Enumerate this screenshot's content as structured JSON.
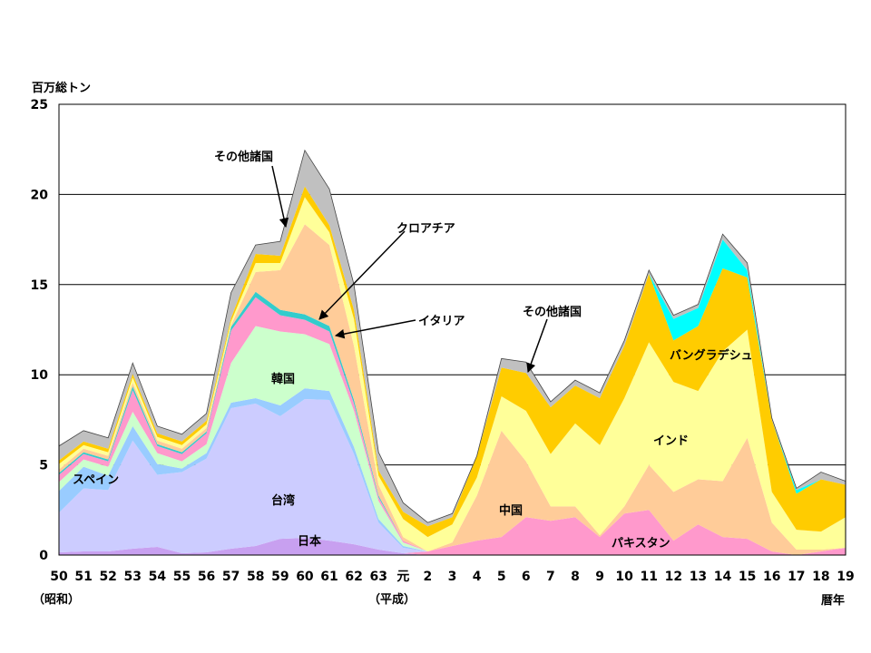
{
  "chart_data": {
    "type": "area",
    "stacked": true,
    "ylabel": "百万総トン",
    "xlabel": "暦年",
    "era_labels": {
      "showa": "（昭和）",
      "heisei": "（平成）"
    },
    "ylim": [
      0,
      25
    ],
    "yticks": [
      0,
      5,
      10,
      15,
      20,
      25
    ],
    "grid": true,
    "categories": [
      "50",
      "51",
      "52",
      "53",
      "54",
      "55",
      "56",
      "57",
      "58",
      "59",
      "60",
      "61",
      "62",
      "63",
      "元",
      "2",
      "3",
      "4",
      "5",
      "6",
      "7",
      "8",
      "9",
      "10",
      "11",
      "12",
      "13",
      "14",
      "15",
      "16",
      "17",
      "18",
      "19"
    ],
    "series": [
      {
        "name": "日本",
        "color": "#c8a0f0",
        "values": [
          0.15,
          0.2,
          0.2,
          0.35,
          0.45,
          0.1,
          0.15,
          0.35,
          0.5,
          0.9,
          0.95,
          0.8,
          0.6,
          0.3,
          0.1,
          0.0,
          0.0,
          0.0,
          0.0,
          0.0,
          0.0,
          0.0,
          0.0,
          0.0,
          0.0,
          0.0,
          0.0,
          0.0,
          0.0,
          0.0,
          0.0,
          0.0,
          0.0
        ]
      },
      {
        "name": "パキスタン",
        "color": "#ff99cc",
        "values": [
          0,
          0,
          0,
          0,
          0,
          0,
          0,
          0,
          0,
          0,
          0,
          0,
          0,
          0,
          0,
          0.2,
          0.5,
          0.8,
          1.0,
          2.1,
          1.9,
          2.1,
          1.0,
          2.3,
          2.5,
          0.8,
          1.7,
          1.0,
          0.9,
          0.2,
          0,
          0.2,
          0.4
        ]
      },
      {
        "name": "台湾",
        "color": "#ccccff",
        "values": [
          2.2,
          3.5,
          3.4,
          6.0,
          4.0,
          4.5,
          5.2,
          7.8,
          7.9,
          6.8,
          7.7,
          7.8,
          5.0,
          1.5,
          0.3,
          0,
          0,
          0,
          0,
          0,
          0,
          0,
          0,
          0,
          0,
          0,
          0,
          0,
          0,
          0,
          0,
          0,
          0
        ]
      },
      {
        "name": "スペイン",
        "color": "#99ccff",
        "values": [
          1.2,
          1.2,
          0.8,
          0.8,
          0.6,
          0.2,
          0.3,
          0.3,
          0.3,
          0.6,
          0.6,
          0.5,
          0.4,
          0.2,
          0.1,
          0,
          0,
          0,
          0,
          0,
          0,
          0,
          0,
          0,
          0,
          0,
          0,
          0,
          0,
          0,
          0,
          0,
          0
        ]
      },
      {
        "name": "韓国",
        "color": "#ccffcc",
        "values": [
          0.5,
          0.4,
          0.5,
          0.8,
          0.6,
          0.4,
          0.5,
          2.2,
          4.0,
          4.1,
          3.0,
          2.6,
          2.0,
          1.0,
          0.2,
          0,
          0,
          0,
          0,
          0,
          0,
          0,
          0,
          0,
          0,
          0,
          0,
          0,
          0,
          0,
          0,
          0,
          0
        ]
      },
      {
        "name": "中国",
        "color": "#ffcc99",
        "values": [
          0,
          0,
          0,
          0,
          0,
          0,
          0,
          0,
          0,
          0,
          0,
          0,
          0,
          0,
          0,
          0,
          0.2,
          2.5,
          5.9,
          3.1,
          0.8,
          0.6,
          0.1,
          0.4,
          2.5,
          2.7,
          2.5,
          3.1,
          5.6,
          1.6,
          0.3,
          0.1,
          0
        ]
      },
      {
        "name": "イタリア",
        "color": "#ff99cc",
        "values": [
          0.4,
          0.3,
          0.3,
          1.2,
          0.4,
          0.4,
          0.6,
          1.8,
          1.6,
          0.9,
          0.8,
          0.7,
          0.4,
          0.2,
          0.1,
          0,
          0,
          0,
          0,
          0,
          0,
          0,
          0,
          0,
          0,
          0,
          0,
          0,
          0,
          0,
          0,
          0,
          0
        ]
      },
      {
        "name": "クロアチア",
        "color": "#33cccc",
        "values": [
          0.1,
          0.1,
          0.1,
          0.2,
          0.1,
          0.1,
          0.1,
          0.2,
          0.3,
          0.3,
          0.3,
          0.3,
          0.2,
          0.1,
          0,
          0,
          0,
          0,
          0,
          0,
          0,
          0,
          0,
          0,
          0,
          0,
          0,
          0,
          0,
          0,
          0,
          0,
          0
        ]
      },
      {
        "name": "",
        "color": "#ffcc99",
        "values": [
          0.2,
          0.2,
          0.2,
          0.2,
          0.2,
          0.2,
          0.2,
          0.1,
          1.1,
          2.2,
          5.0,
          4.5,
          3.0,
          0.6,
          0.2,
          0,
          0,
          0,
          0,
          0,
          0,
          0,
          0,
          0,
          0,
          0,
          0,
          0,
          0,
          0,
          0,
          0,
          0
        ]
      },
      {
        "name": "インド",
        "color": "#ffff99",
        "values": [
          0.3,
          0.2,
          0.2,
          0.3,
          0.2,
          0.2,
          0.2,
          0.2,
          0.5,
          0.4,
          1.5,
          0.7,
          1.5,
          0.5,
          1.0,
          0.8,
          1.0,
          1.0,
          1.9,
          2.8,
          2.9,
          4.6,
          5.0,
          6.0,
          6.8,
          6.1,
          4.9,
          7.2,
          6.0,
          1.7,
          1.1,
          1.0,
          1.7
        ]
      },
      {
        "name": "バングラデシュ",
        "color": "#ffcc00",
        "values": [
          0.2,
          0.2,
          0.2,
          0.2,
          0.2,
          0.2,
          0.2,
          0.2,
          0.5,
          0.4,
          0.6,
          0.4,
          0.5,
          0.3,
          0.4,
          0.6,
          0.4,
          1.2,
          1.6,
          2.1,
          2.6,
          2.1,
          2.6,
          2.9,
          3.8,
          2.3,
          3.6,
          4.6,
          2.9,
          4.0,
          2.0,
          2.9,
          1.8
        ]
      },
      {
        "name": "",
        "color": "#00ffff",
        "values": [
          0,
          0,
          0,
          0,
          0,
          0,
          0,
          0,
          0,
          0,
          0,
          0,
          0,
          0,
          0,
          0,
          0,
          0,
          0,
          0,
          0,
          0,
          0,
          0,
          0,
          1.2,
          1.0,
          1.6,
          0.4,
          0,
          0.2,
          0,
          0
        ]
      },
      {
        "name": "その他諸国",
        "color": "#c0c0c0",
        "values": [
          0.8,
          0.6,
          0.6,
          0.6,
          0.4,
          0.4,
          0.4,
          1.4,
          0.5,
          0.8,
          2.0,
          2.0,
          1.4,
          1.0,
          0.5,
          0.2,
          0.2,
          0.0,
          0.5,
          0.6,
          0.3,
          0.3,
          0.3,
          0.3,
          0.2,
          0.2,
          0.2,
          0.3,
          0.4,
          0.1,
          0.1,
          0.4,
          0.2
        ]
      }
    ],
    "annotations": [
      {
        "text": "その他諸国",
        "id": "other-1"
      },
      {
        "text": "クロアチア",
        "id": "croatia"
      },
      {
        "text": "イタリア",
        "id": "italy"
      },
      {
        "text": "その他諸国",
        "id": "other-2"
      },
      {
        "text": "バングラデシュ",
        "id": "bangladesh"
      },
      {
        "text": "韓国",
        "id": "korea"
      },
      {
        "text": "インド",
        "id": "india"
      },
      {
        "text": "スペイン",
        "id": "spain"
      },
      {
        "text": "台湾",
        "id": "taiwan"
      },
      {
        "text": "中国",
        "id": "china"
      },
      {
        "text": "日本",
        "id": "japan"
      },
      {
        "text": "パキスタン",
        "id": "pakistan"
      }
    ]
  }
}
